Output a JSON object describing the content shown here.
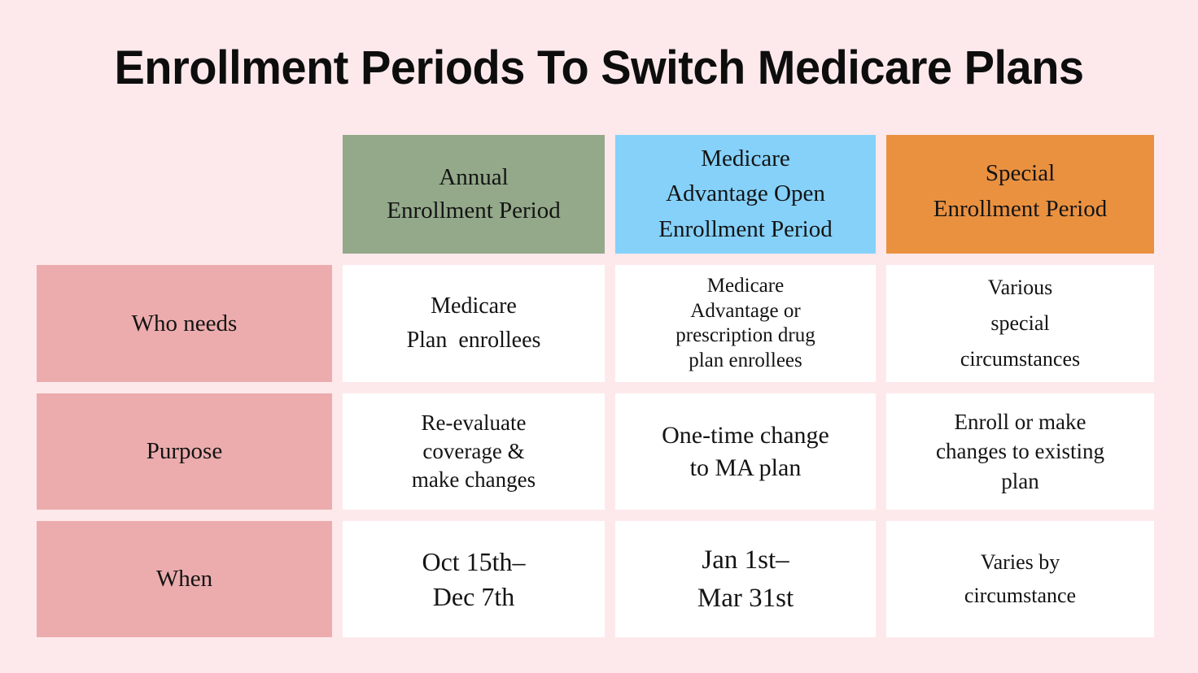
{
  "page": {
    "title": "Enrollment Periods To Switch Medicare Plans",
    "background_color": "#fde9eb"
  },
  "colors": {
    "page_background": "#fde9eb",
    "row_header_pink": "#ecacad",
    "annual_green": "#93a98a",
    "ma_open_blue": "#85d1fa",
    "special_orange": "#ea9140",
    "cell_white": "#ffffff",
    "text": "#141414"
  },
  "table": {
    "column_headers": [
      {
        "id": "annual",
        "label": "Annual\nEnrollment Period",
        "color": "#93a98a"
      },
      {
        "id": "ma_open",
        "label": "Medicare\nAdvantage Open\nEnrollment Period",
        "color": "#85d1fa"
      },
      {
        "id": "special",
        "label": "Special\nEnrollment Period",
        "color": "#ea9140"
      }
    ],
    "rows": [
      {
        "header": "Who needs",
        "cells": [
          "Medicare\nPlan  enrollees",
          "Medicare\nAdvantage or\nprescription drug\nplan enrollees",
          "Various\nspecial\ncircumstances"
        ]
      },
      {
        "header": "Purpose",
        "cells": [
          "Re-evaluate\ncoverage &\nmake changes",
          "One-time change\nto MA plan",
          "Enroll or make\nchanges to existing\nplan"
        ]
      },
      {
        "header": "When",
        "cells": [
          "Oct 15th–\nDec 7th",
          "Jan 1st–\nMar 31st",
          "Varies by\ncircumstance"
        ]
      }
    ]
  }
}
